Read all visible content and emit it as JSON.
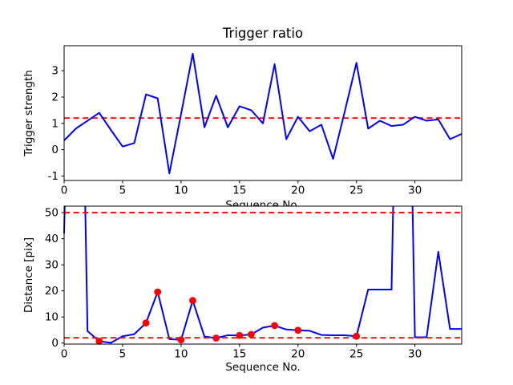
{
  "figure": {
    "title": "Trigger ratio",
    "background": "#ffffff"
  },
  "colors": {
    "line": "#0000ff",
    "threshold": "#ff0000",
    "marker": "#ff0000",
    "axis": "#000000",
    "text": "#000000"
  },
  "chart_data": [
    {
      "type": "line",
      "title": "Trigger ratio",
      "xlabel": "Sequence No.",
      "ylabel": "Trigger strength",
      "x": [
        0,
        1,
        2,
        3,
        4,
        5,
        6,
        7,
        8,
        9,
        10,
        11,
        12,
        13,
        14,
        15,
        16,
        17,
        18,
        19,
        20,
        21,
        22,
        23,
        24,
        25,
        26,
        27,
        28,
        29,
        30,
        31,
        32,
        33,
        34
      ],
      "series": [
        {
          "name": "trigger-strength",
          "values": [
            0.35,
            0.8,
            1.1,
            1.4,
            0.75,
            0.12,
            0.25,
            2.1,
            1.95,
            -0.9,
            1.35,
            3.65,
            0.85,
            2.05,
            0.85,
            1.65,
            1.5,
            1.0,
            3.25,
            0.4,
            1.25,
            0.7,
            0.95,
            -0.35,
            1.45,
            3.3,
            0.8,
            1.1,
            0.9,
            0.95,
            1.25,
            1.1,
            1.15,
            0.4,
            0.6
          ]
        }
      ],
      "thresholds": [
        1.2
      ],
      "xlim": [
        0,
        34
      ],
      "ylim": [
        -1.17,
        3.95
      ],
      "xticks": [
        0,
        5,
        10,
        15,
        20,
        25,
        30
      ],
      "yticks": [
        -1,
        0,
        1,
        2,
        3
      ],
      "grid": false,
      "legend": "none"
    },
    {
      "type": "line",
      "title": "",
      "xlabel": "Sequence No.",
      "ylabel": "Distance [pix]",
      "x": [
        0,
        1,
        2,
        3,
        4,
        5,
        6,
        7,
        8,
        9,
        10,
        11,
        12,
        13,
        14,
        15,
        16,
        17,
        18,
        19,
        20,
        21,
        22,
        23,
        24,
        25,
        26,
        27,
        28,
        29,
        30,
        31,
        32,
        33,
        34
      ],
      "series": [
        {
          "name": "distance",
          "values": [
            42,
            250,
            4.6,
            0.7,
            0.1,
            2.6,
            3.4,
            7.7,
            19.6,
            1.5,
            1.2,
            16.3,
            2.5,
            1.9,
            3.0,
            2.9,
            3.3,
            5.9,
            6.7,
            5.2,
            4.9,
            4.7,
            3.1,
            3.0,
            3.0,
            2.6,
            20.5,
            20.5,
            20.5,
            250,
            2.2,
            2.2,
            35.0,
            5.4,
            5.4
          ]
        }
      ],
      "thresholds": [
        50,
        2
      ],
      "markers": {
        "x": [
          3,
          7,
          8,
          10,
          11,
          13,
          15,
          16,
          18,
          20,
          25
        ],
        "values": [
          0.7,
          7.7,
          19.6,
          1.2,
          16.3,
          1.9,
          2.9,
          3.3,
          6.7,
          4.9,
          2.6
        ]
      },
      "xlim": [
        0,
        34
      ],
      "ylim": [
        -0.4,
        52.5
      ],
      "xticks": [
        0,
        5,
        10,
        15,
        20,
        25,
        30
      ],
      "yticks": [
        0,
        10,
        20,
        30,
        40,
        50
      ],
      "grid": false,
      "legend": "none"
    }
  ]
}
